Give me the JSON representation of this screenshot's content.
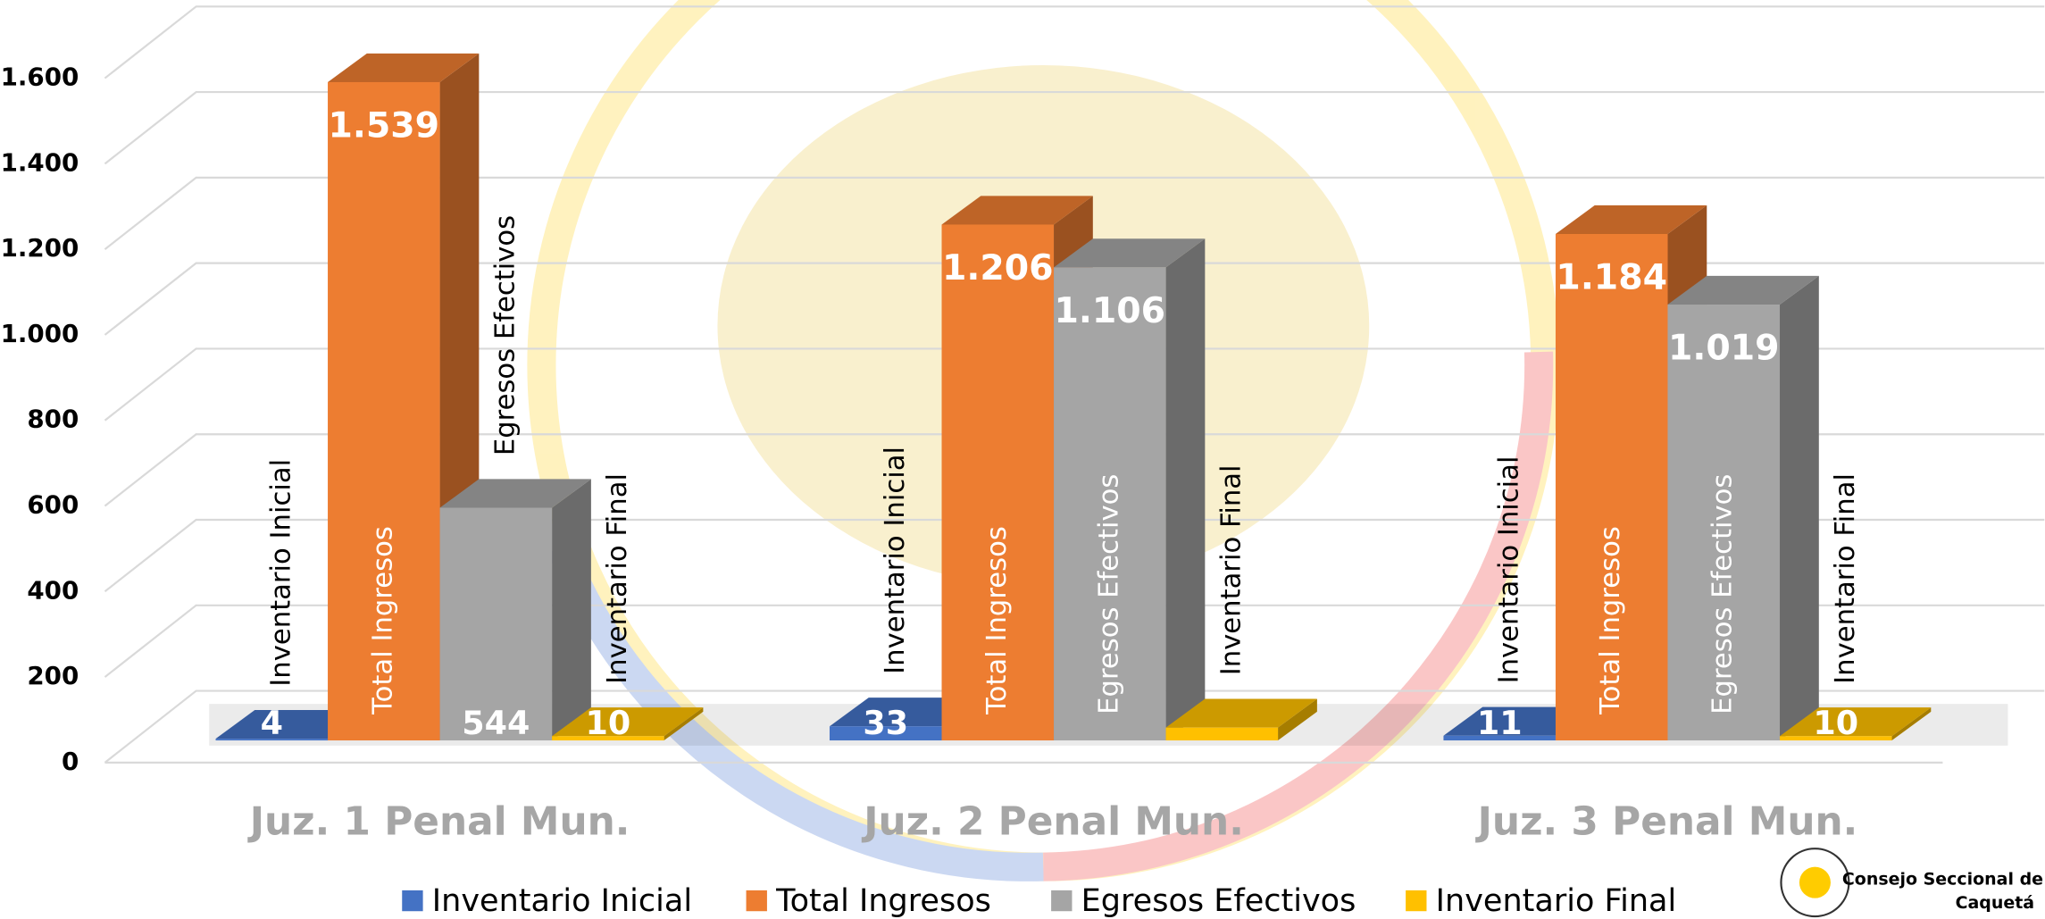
{
  "chart_data": {
    "type": "bar3d",
    "categories": [
      "Juz. 1 Penal Mun.",
      "Juz. 2 Penal Mun.",
      "Juz. 3 Penal Mun."
    ],
    "series": [
      {
        "name": "Inventario Inicial",
        "color": "#4472c4",
        "values": [
          4,
          33,
          11
        ]
      },
      {
        "name": "Total Ingresos",
        "color": "#ed7d31",
        "values": [
          1539,
          1206,
          1184
        ],
        "value_labels": [
          "1.539",
          "1.206",
          "1.184"
        ]
      },
      {
        "name": "Egresos Efectivos",
        "color": "#a5a5a5",
        "values": [
          544,
          1106,
          1019
        ],
        "value_labels": [
          "544",
          "1.106",
          "1.019"
        ]
      },
      {
        "name": "Inventario Final",
        "color": "#ffc000",
        "values": [
          10,
          30,
          10
        ],
        "value_labels": [
          "10",
          null,
          "10"
        ]
      }
    ],
    "ylim": [
      0,
      1800
    ],
    "yticks": [
      0,
      200,
      400,
      600,
      800,
      {
        "value": 1000,
        "label": "1.000"
      },
      {
        "value": 1200,
        "label": "1.200"
      },
      {
        "value": 1400,
        "label": "1.400"
      },
      {
        "value": 1600,
        "label": "1.600"
      }
    ],
    "grid": true,
    "legend": "bottom"
  },
  "logo": {
    "line1": "Consejo Seccional de",
    "line2": "Caquetá"
  }
}
